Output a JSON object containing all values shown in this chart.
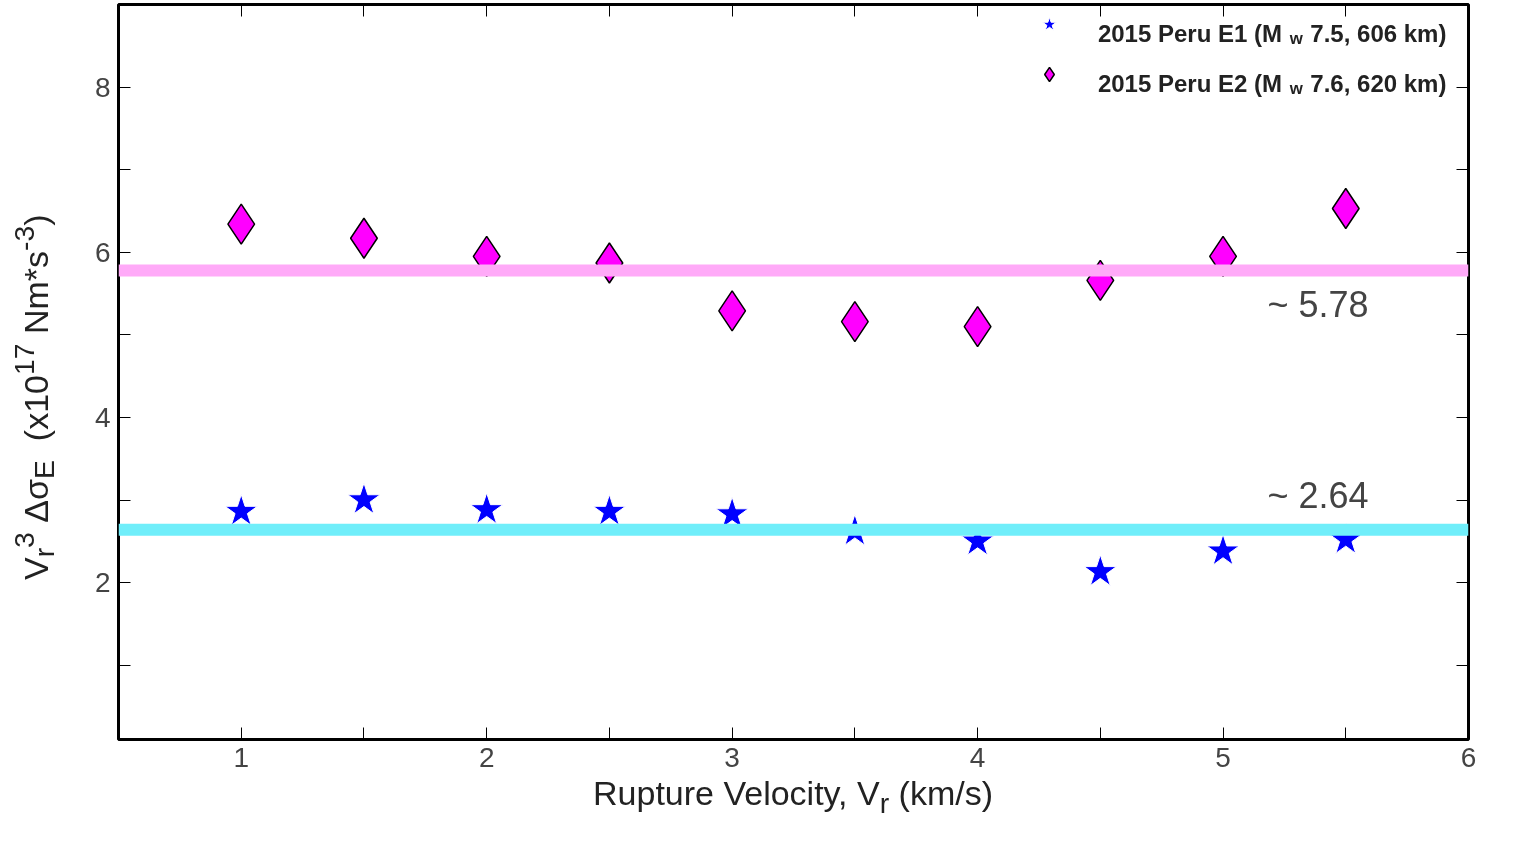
{
  "chart_data": {
    "type": "scatter",
    "xlabel": "Rupture Velocity, V$_{r}$ (km/s)",
    "ylabel": "V$_{r}$$^{3}$ Δσ$_{E}$  (x10$^{17}$ Nm*s$^{-3}$)",
    "x": [
      1,
      1.5,
      2,
      2.5,
      3,
      3.5,
      4,
      4.5,
      5,
      5.5
    ],
    "series": [
      {
        "name": "2015 Peru E1  (M$_{w}$ 7.5, 606 km)",
        "color": "#0000ff",
        "marker": "star",
        "values": [
          2.86,
          3.0,
          2.88,
          2.86,
          2.83,
          2.62,
          2.5,
          2.13,
          2.38,
          2.52
        ]
      },
      {
        "name": "2015 Peru E2  (M$_{w}$ 7.6, 620 km)",
        "color": "#ff00ff",
        "marker": "diamond",
        "values": [
          6.34,
          6.17,
          5.95,
          5.87,
          5.29,
          5.16,
          5.1,
          5.66,
          5.95,
          6.53
        ]
      }
    ],
    "ref_lines": [
      {
        "axis": "y",
        "value": 5.78,
        "label": "~ 5.78",
        "color": "#ffaaf8"
      },
      {
        "axis": "y",
        "value": 2.64,
        "label": "~ 2.64",
        "color": "#70eefa"
      }
    ],
    "xlim": [
      0.5,
      6
    ],
    "ylim": [
      0.1,
      9
    ],
    "xticks": [
      {
        "value": 0.5,
        "label": null
      },
      1,
      {
        "value": 1.5,
        "label": null
      },
      2,
      {
        "value": 2.5,
        "label": null
      },
      3,
      {
        "value": 3.5,
        "label": null
      },
      4,
      {
        "value": 4.5,
        "label": null
      },
      5,
      {
        "value": 5.5,
        "label": null
      },
      6
    ],
    "yticks": [
      {
        "value": 1,
        "label": null
      },
      2,
      {
        "value": 3,
        "label": null
      },
      4,
      {
        "value": 5,
        "label": null
      },
      6,
      {
        "value": 7,
        "label": null
      },
      8
    ],
    "grid": false,
    "legend": "top right"
  }
}
